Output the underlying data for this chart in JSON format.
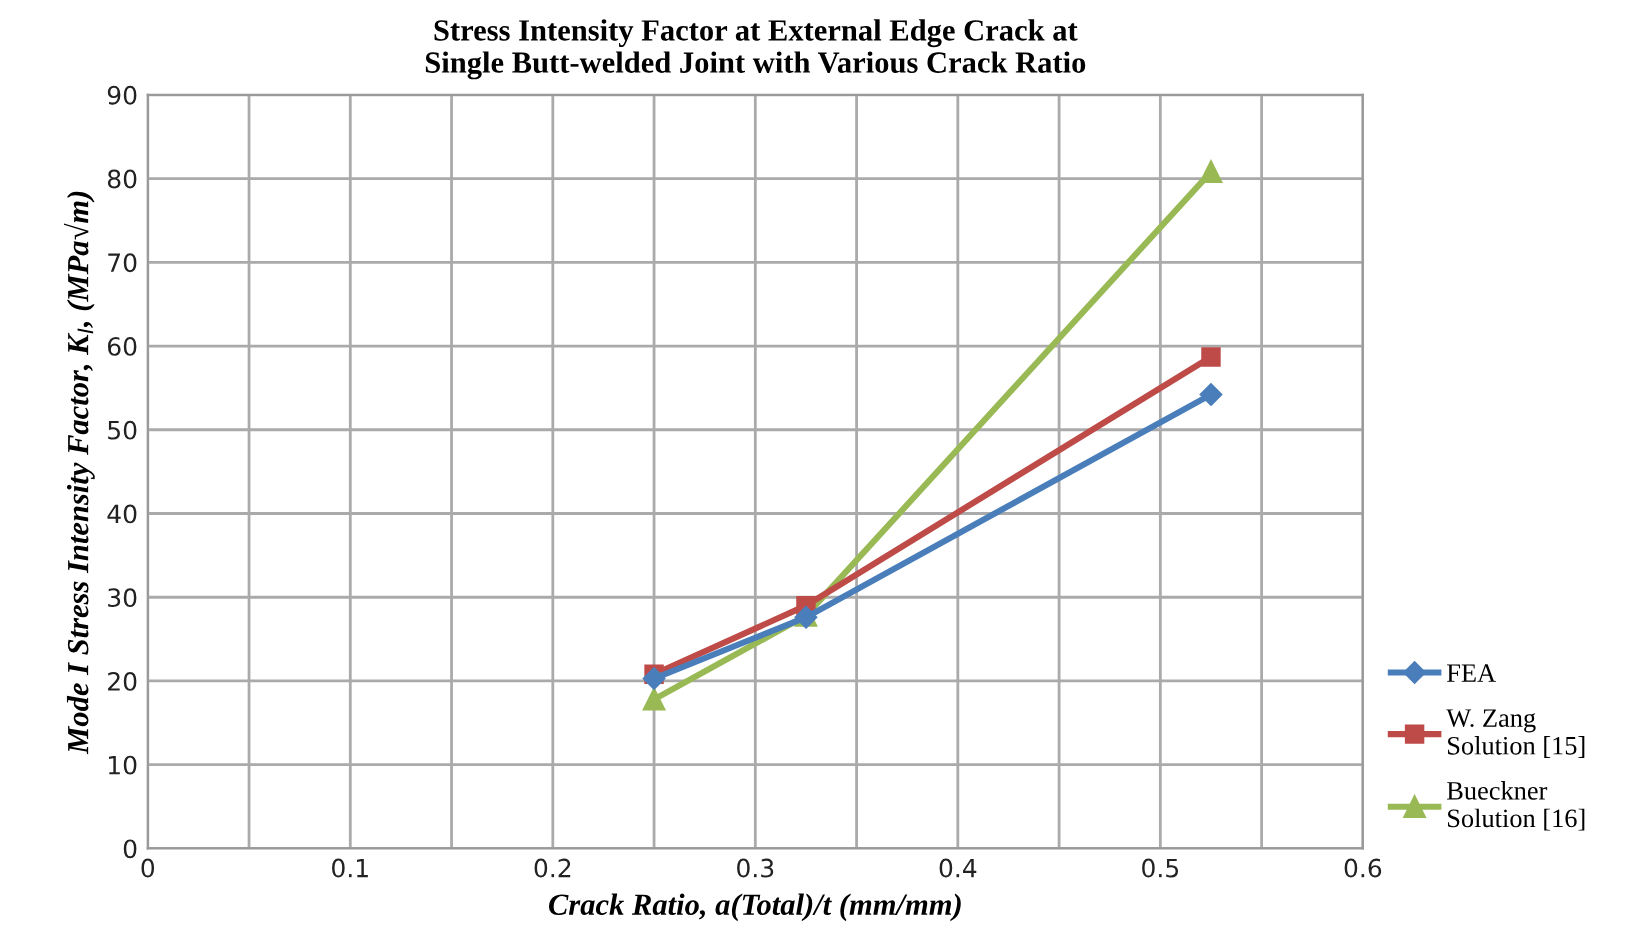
{
  "chart_data": {
    "type": "line",
    "title": "Stress Intensity Factor at External Edge Crack at\nSingle Butt-welded Joint with Various Crack Ratio",
    "xlabel": "Crack Ratio, a(Total)/t (mm/mm)",
    "ylabel": "Mode I Stress Intensity Factor, K$_{I}$, (MPa√m)",
    "x": [
      0.25,
      0.325,
      0.525
    ],
    "series": [
      {
        "name": "FEA",
        "color": "#4a7ebb",
        "marker": "diamond",
        "values": [
          20.3,
          27.6,
          54.2
        ]
      },
      {
        "name": "W. Zang\nSolution [15]",
        "color": "#be4b48",
        "marker": "square",
        "values": [
          20.8,
          29.0,
          58.7
        ]
      },
      {
        "name": "Bueckner\nSolution [16]",
        "color": "#98b954",
        "marker": "triangle",
        "values": [
          17.8,
          27.8,
          80.8
        ]
      }
    ],
    "xlim": [
      0,
      0.6
    ],
    "xticks": [
      0,
      {
        "value": 0.05,
        "label": null
      },
      0.1,
      {
        "value": 0.15,
        "label": null
      },
      0.2,
      {
        "value": 0.25,
        "label": null
      },
      0.3,
      {
        "value": 0.35,
        "label": null
      },
      0.4,
      {
        "value": 0.45,
        "label": null
      },
      0.5,
      {
        "value": 0.55,
        "label": null
      },
      0.6
    ],
    "ylim": [
      0,
      90
    ],
    "yticks": [
      0,
      10,
      20,
      30,
      40,
      50,
      60,
      70,
      80,
      90
    ],
    "grid": true,
    "legend": "right"
  }
}
